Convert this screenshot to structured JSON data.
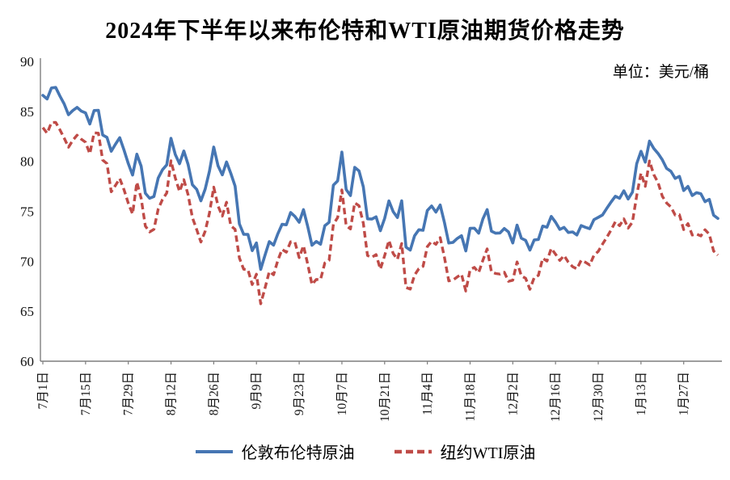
{
  "title": "2024年下半年以来布伦特和WTI原油期货价格走势",
  "unit_label": "单位：美元/桶",
  "legend": [
    {
      "label": "伦敦布伦特原油",
      "color": "#4676b3",
      "style": "solid"
    },
    {
      "label": "纽约WTI原油",
      "color": "#bf4b47",
      "style": "dashed"
    }
  ],
  "chart_data": {
    "type": "line",
    "title": "2024年下半年以来布伦特和WTI原油期货价格走势",
    "unit": "单位：美元/桶",
    "ylabel": "美元/桶",
    "ylim": [
      60,
      90
    ],
    "yticks": [
      60,
      65,
      70,
      75,
      80,
      85,
      90
    ],
    "grid": false,
    "legend_position": "bottom",
    "x_tick_labels": [
      "7月1日",
      "7月15日",
      "7月29日",
      "8月12日",
      "8月26日",
      "9月9日",
      "9月23日",
      "10月7日",
      "10月21日",
      "11月4日",
      "11月18日",
      "12月2日",
      "12月16日",
      "12月30日",
      "1月13日",
      "1月27日"
    ],
    "x_tick_indices": [
      0,
      10,
      20,
      30,
      40,
      50,
      60,
      70,
      80,
      90,
      100,
      110,
      120,
      130,
      140,
      150
    ],
    "series": [
      {
        "name": "伦敦布伦特原油",
        "color": "#4676b3",
        "dash": null,
        "values": [
          86.6,
          86.24,
          87.34,
          87.4,
          86.54,
          85.75,
          84.66,
          85.08,
          85.4,
          85.03,
          84.85,
          83.73,
          85.08,
          85.11,
          82.63,
          82.4,
          81.01,
          81.71,
          82.37,
          81.13,
          79.78,
          78.63,
          80.72,
          79.52,
          76.81,
          76.3,
          76.48,
          78.33,
          79.16,
          79.66,
          82.3,
          80.69,
          79.76,
          81.04,
          79.68,
          77.66,
          77.2,
          76.05,
          77.22,
          79.02,
          81.43,
          79.55,
          78.65,
          79.94,
          78.8,
          77.52,
          73.75,
          72.7,
          72.69,
          71.06,
          71.84,
          69.19,
          70.61,
          71.97,
          71.61,
          72.75,
          73.7,
          73.65,
          74.88,
          74.49,
          73.9,
          75.17,
          73.46,
          71.6,
          71.98,
          71.7,
          73.56,
          73.9,
          77.62,
          78.05,
          80.93,
          77.18,
          76.58,
          79.4,
          79.04,
          77.46,
          74.25,
          74.22,
          74.45,
          73.06,
          74.29,
          76.04,
          74.96,
          74.38,
          76.05,
          71.42,
          71.12,
          72.55,
          73.16,
          73.1,
          75.08,
          75.53,
          74.92,
          75.63,
          73.87,
          71.83,
          71.89,
          72.28,
          72.56,
          71.04,
          73.3,
          73.31,
          72.81,
          74.23,
          75.17,
          73.01,
          72.81,
          72.83,
          73.28,
          72.94,
          71.83,
          73.62,
          72.31,
          72.09,
          71.12,
          72.14,
          72.19,
          73.52,
          73.41,
          74.49,
          73.91,
          73.19,
          73.39,
          72.88,
          72.94,
          72.63,
          73.58,
          73.4,
          73.26,
          74.17,
          74.39,
          74.64,
          75.3,
          75.93,
          76.51,
          76.3,
          77.05,
          76.23,
          76.92,
          79.76,
          81.01,
          79.92,
          82.03,
          81.29,
          80.79,
          80.15,
          79.29,
          79.0,
          78.29,
          78.5,
          77.08,
          77.49,
          76.58,
          76.87,
          76.76,
          75.96,
          76.2,
          74.61,
          74.29
        ]
      },
      {
        "name": "纽约WTI原油",
        "color": "#bf4b47",
        "dash": "8 4.5",
        "values": [
          83.38,
          82.81,
          83.88,
          83.9,
          83.16,
          82.33,
          81.41,
          82.1,
          82.62,
          82.21,
          81.91,
          80.76,
          82.85,
          82.82,
          80.13,
          79.78,
          76.96,
          77.59,
          78.28,
          77.16,
          75.81,
          74.73,
          77.91,
          76.31,
          73.52,
          72.94,
          73.2,
          75.23,
          76.19,
          76.84,
          80.06,
          78.35,
          76.98,
          78.16,
          76.65,
          74.37,
          73.17,
          71.93,
          73.01,
          74.83,
          77.42,
          75.53,
          74.52,
          75.91,
          73.55,
          73.2,
          70.34,
          69.2,
          69.15,
          67.67,
          68.71,
          65.75,
          67.31,
          68.97,
          68.65,
          70.09,
          71.19,
          70.91,
          71.95,
          71.92,
          70.37,
          71.56,
          69.69,
          67.67,
          68.18,
          68.17,
          69.83,
          70.1,
          73.71,
          74.38,
          77.14,
          73.57,
          73.24,
          75.85,
          75.56,
          73.83,
          70.58,
          70.39,
          70.67,
          69.22,
          70.56,
          72.09,
          70.77,
          70.19,
          71.78,
          67.38,
          67.21,
          68.61,
          69.26,
          69.49,
          71.47,
          71.99,
          71.69,
          72.36,
          70.38,
          68.04,
          68.12,
          68.43,
          68.7,
          67.02,
          69.16,
          69.39,
          68.87,
          70.1,
          71.24,
          68.94,
          68.77,
          68.72,
          68.9,
          68.0,
          68.1,
          69.94,
          68.54,
          68.3,
          67.2,
          68.37,
          68.59,
          70.29,
          70.02,
          71.29,
          70.71,
          70.08,
          70.58,
          69.91,
          69.46,
          69.24,
          70.1,
          69.9,
          69.62,
          70.6,
          70.99,
          71.72,
          72.4,
          73.13,
          73.96,
          73.56,
          74.25,
          73.32,
          73.92,
          76.57,
          78.82,
          77.5,
          80.04,
          78.68,
          77.88,
          76.5,
          75.83,
          75.44,
          74.62,
          74.66,
          73.17,
          73.77,
          72.62,
          72.73,
          72.53,
          73.16,
          72.7,
          71.03,
          70.61
        ]
      }
    ]
  }
}
